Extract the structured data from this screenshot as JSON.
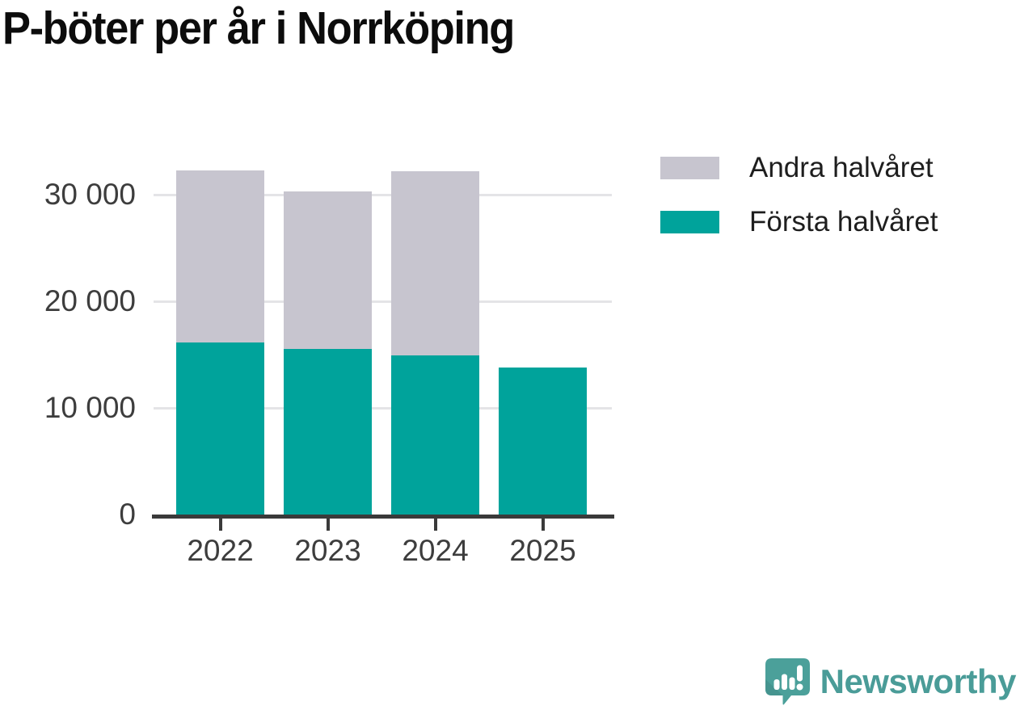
{
  "title": "P-böter per år i Norrköping",
  "legend": {
    "items": [
      {
        "label": "Andra halvåret",
        "color": "#c7c5cf"
      },
      {
        "label": "Första halvåret",
        "color": "#00a39b"
      }
    ]
  },
  "branding": {
    "name": "Newsworthy",
    "logo_icon": "newsworthy-speech-bubble-chart-icon",
    "color": "#4a9c98"
  },
  "chart_data": {
    "type": "bar",
    "stacked": true,
    "title": "P-böter per år i Norrköping",
    "categories": [
      "2022",
      "2023",
      "2024",
      "2025"
    ],
    "series": [
      {
        "name": "Första halvåret",
        "color": "#00a39b",
        "values": [
          16100,
          15500,
          14900,
          13800
        ]
      },
      {
        "name": "Andra halvåret",
        "color": "#c7c5cf",
        "values": [
          16200,
          14800,
          17300,
          0
        ]
      }
    ],
    "totals": [
      32300,
      30300,
      32200,
      13800
    ],
    "xlabel": "",
    "ylabel": "",
    "ylim": [
      0,
      34000
    ],
    "yticks": [
      {
        "value": 0,
        "label": "0"
      },
      {
        "value": 10000,
        "label": "10 000"
      },
      {
        "value": 20000,
        "label": "20 000"
      },
      {
        "value": 30000,
        "label": "30 000"
      }
    ],
    "grid": "horizontal",
    "legend_position": "top-right"
  },
  "colors": {
    "gridline": "#e4e4e7",
    "axis": "#3a3a3a",
    "tick_text": "#3d3d3d",
    "title_text": "#0c0c0c"
  }
}
